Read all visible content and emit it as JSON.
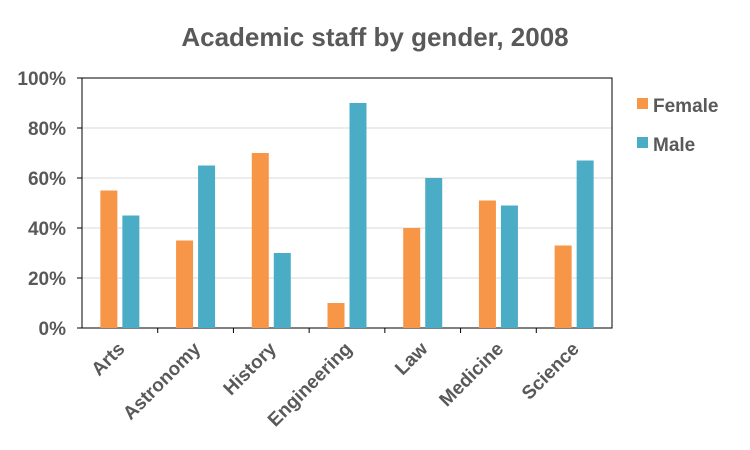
{
  "chart_data": {
    "type": "bar",
    "title": "Academic staff by gender, 2008",
    "xlabel": "",
    "ylabel": "",
    "categories": [
      "Arts",
      "Astronomy",
      "History",
      "Engineering",
      "Law",
      "Medicine",
      "Science"
    ],
    "series": [
      {
        "name": "Female",
        "color": "#F79646",
        "values": [
          55,
          35,
          70,
          10,
          40,
          51,
          33
        ]
      },
      {
        "name": "Male",
        "color": "#4BACC6",
        "values": [
          45,
          65,
          30,
          90,
          60,
          49,
          67
        ]
      }
    ],
    "ylim": [
      0,
      100
    ],
    "yticks": [
      0,
      20,
      40,
      60,
      80,
      100
    ],
    "ytick_labels": [
      "0%",
      "20%",
      "40%",
      "60%",
      "80%",
      "100%"
    ],
    "grid": true,
    "legend_position": "right"
  }
}
